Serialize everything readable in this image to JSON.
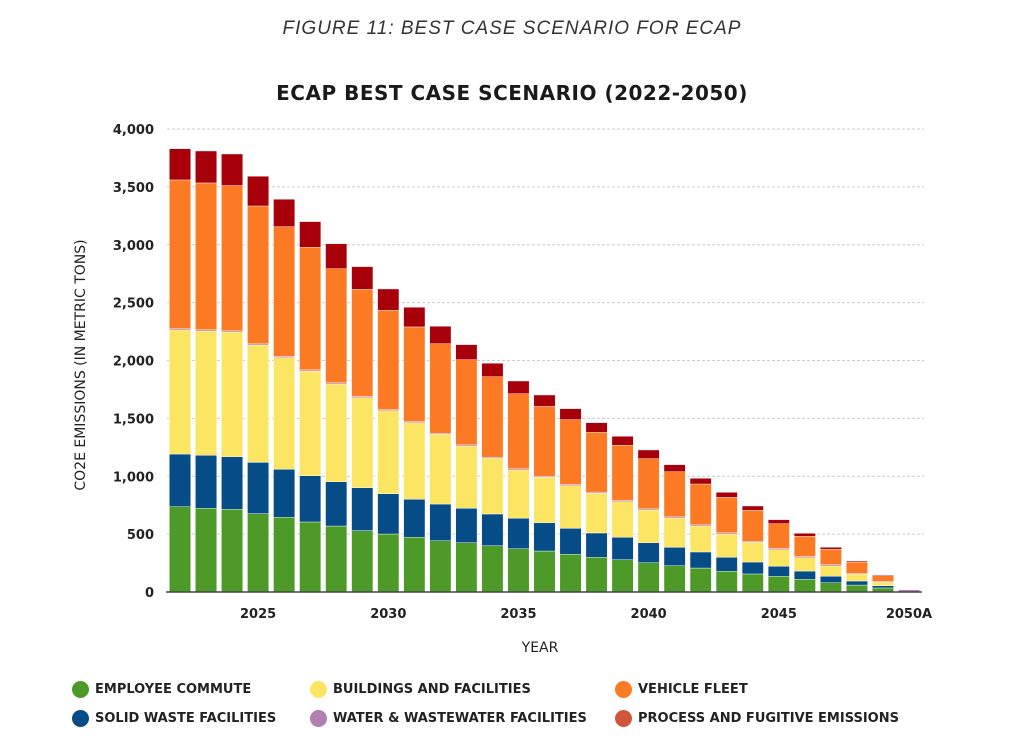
{
  "figure_caption": "FIGURE 11: BEST CASE SCENARIO FOR ECAP",
  "chart_data": {
    "type": "bar",
    "stacked": true,
    "title": "ECAP BEST CASE SCENARIO (2022-2050)",
    "xlabel": "YEAR",
    "ylabel": "CO2E EMISSIONS (IN METRIC TONS)",
    "ylim": [
      0,
      4000
    ],
    "yticks": [
      0,
      500,
      1000,
      1500,
      2000,
      2500,
      3000,
      3500,
      4000
    ],
    "ytick_labels": [
      "0",
      "500",
      "1,000",
      "1,500",
      "2,000",
      "2,500",
      "3,000",
      "3,500",
      "4,000"
    ],
    "grid": true,
    "legend_position": "bottom",
    "categories": [
      2022,
      2023,
      2024,
      2025,
      2026,
      2027,
      2028,
      2029,
      2030,
      2031,
      2032,
      2033,
      2034,
      2035,
      2036,
      2037,
      2038,
      2039,
      2040,
      2041,
      2042,
      2043,
      2044,
      2045,
      2046,
      2047,
      2048,
      2049,
      2050
    ],
    "xtick_labels": [
      {
        "year": 2025,
        "label": "2025"
      },
      {
        "year": 2030,
        "label": "2030"
      },
      {
        "year": 2035,
        "label": "2035"
      },
      {
        "year": 2040,
        "label": "2040"
      },
      {
        "year": 2045,
        "label": "2045"
      },
      {
        "year": 2050,
        "label": "2050A"
      }
    ],
    "series": [
      {
        "name": "EMPLOYEE COMMUTE",
        "color": "#4e9a28",
        "legend_color": "#4e9a28",
        "values": [
          737,
          723,
          714,
          677,
          645,
          605,
          570,
          530,
          501,
          473,
          443,
          426,
          400,
          374,
          354,
          326,
          300,
          279,
          253,
          227,
          207,
          179,
          156,
          136,
          110,
          80,
          60,
          35,
          0
        ]
      },
      {
        "name": "SOLID WASTE FACILITIES",
        "color": "#064d87",
        "legend_color": "#064d87",
        "values": [
          455,
          458,
          455,
          443,
          415,
          400,
          383,
          371,
          348,
          328,
          317,
          297,
          274,
          263,
          245,
          224,
          210,
          194,
          173,
          159,
          139,
          121,
          103,
          86,
          71,
          56,
          35,
          19,
          0
        ]
      },
      {
        "name": "BUILDINGS AND FACILITIES",
        "color": "#fde564",
        "legend_color": "#fde564",
        "values": [
          1072,
          1074,
          1077,
          1014,
          965,
          904,
          844,
          778,
          717,
          662,
          602,
          538,
          481,
          417,
          392,
          368,
          343,
          307,
          282,
          253,
          224,
          201,
          170,
          143,
          115,
          89,
          58,
          32,
          0
        ]
      },
      {
        "name": "WATER & WASTEWATER FACILITIES",
        "color": "#b07fb0",
        "legend_color": "#b07fb0",
        "values": [
          10,
          10,
          10,
          10,
          10,
          10,
          10,
          10,
          10,
          10,
          10,
          10,
          10,
          10,
          10,
          10,
          10,
          10,
          10,
          10,
          10,
          10,
          10,
          10,
          10,
          10,
          8,
          6,
          20
        ]
      },
      {
        "name": "VEHICLE FLEET",
        "color": "#fc7a24",
        "legend_color": "#fc7a24",
        "values": [
          1286,
          1269,
          1255,
          1191,
          1121,
          1059,
          986,
          926,
          858,
          817,
          773,
          736,
          695,
          649,
          603,
          561,
          517,
          477,
          434,
          390,
          353,
          307,
          267,
          215,
          175,
          134,
          98,
          52,
          0
        ]
      },
      {
        "name": "PROCESS AND FUGITIVE EMISSIONS",
        "color": "#a8000a",
        "legend_color": "#d0553a",
        "values": [
          270,
          276,
          273,
          257,
          237,
          222,
          216,
          196,
          184,
          170,
          151,
          130,
          116,
          110,
          98,
          95,
          83,
          78,
          75,
          61,
          49,
          43,
          37,
          35,
          26,
          17,
          9,
          3,
          0
        ]
      }
    ],
    "legend_order": [
      0,
      2,
      4,
      1,
      3,
      5
    ]
  }
}
